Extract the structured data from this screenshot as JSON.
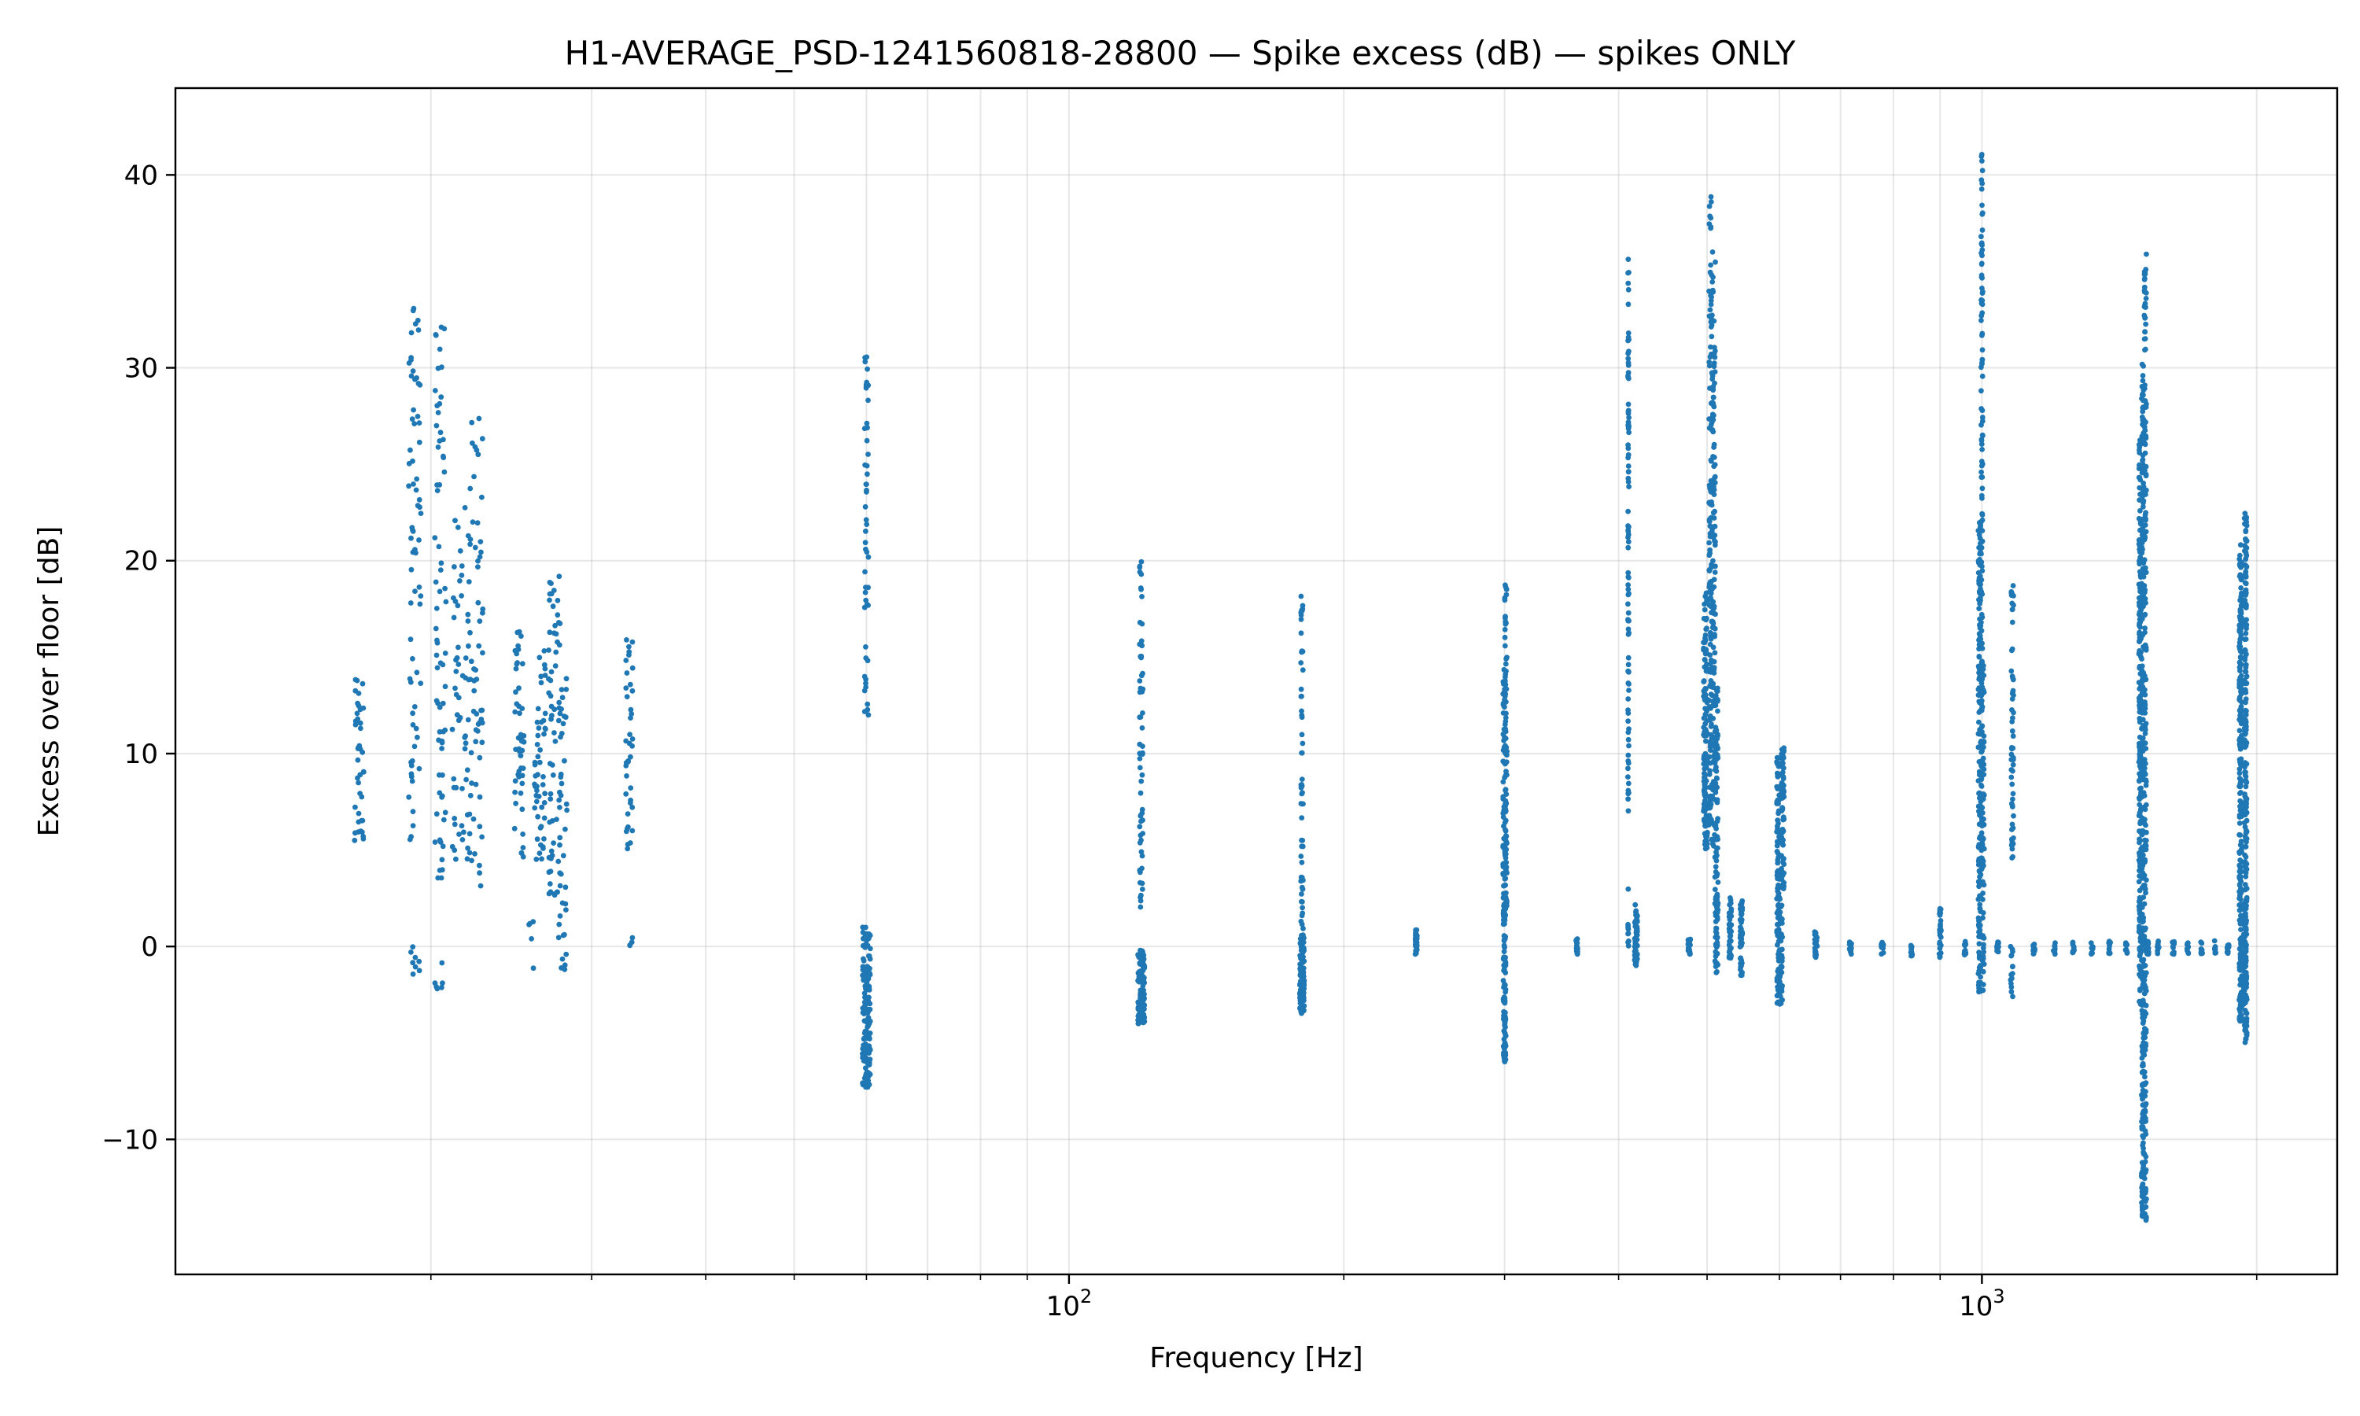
{
  "chart_data": {
    "type": "scatter",
    "title": "H1-AVERAGE_PSD-1241560818-28800 — Spike excess (dB) — spikes ONLY",
    "xlabel": "Frequency [Hz]",
    "ylabel": "Excess over floor [dB]",
    "xscale": "log",
    "xlim": [
      10.5,
      2450
    ],
    "ylim": [
      -17,
      44.5
    ],
    "x_major_ticks": [
      100,
      1000
    ],
    "x_tick_labels": [
      "10",
      "3"
    ],
    "x_tick_base": "10",
    "x_tick_exponents": [
      "2",
      "3"
    ],
    "y_ticks": [
      -10,
      0,
      10,
      20,
      30,
      40
    ],
    "y_tick_labels": [
      "−10",
      "0",
      "10",
      "20",
      "30",
      "40"
    ],
    "grid": true,
    "legend": "none",
    "marker_color": "#1f77b4",
    "clusters": [
      {
        "f": 16.7,
        "spread": 0.2,
        "ymin": 5,
        "ymax": 14,
        "n": 40
      },
      {
        "f": 19.2,
        "spread": 0.3,
        "ymin": 5.5,
        "ymax": 33.5,
        "n": 70
      },
      {
        "f": 19.3,
        "spread": 0.3,
        "ymin": -1.5,
        "ymax": 0.5,
        "n": 8
      },
      {
        "f": 20.5,
        "spread": 0.3,
        "ymin": 3.5,
        "ymax": 32.5,
        "n": 70
      },
      {
        "f": 20.4,
        "spread": 0.2,
        "ymin": -2.2,
        "ymax": -0.2,
        "n": 6
      },
      {
        "f": 21.6,
        "spread": 0.5,
        "ymin": 4.5,
        "ymax": 23,
        "n": 60
      },
      {
        "f": 22.4,
        "spread": 0.4,
        "ymin": 2.5,
        "ymax": 27.5,
        "n": 60
      },
      {
        "f": 25.0,
        "spread": 0.3,
        "ymin": 4.5,
        "ymax": 16.5,
        "n": 50
      },
      {
        "f": 25.7,
        "spread": 0.2,
        "ymin": -1.8,
        "ymax": 2.5,
        "n": 5
      },
      {
        "f": 26.3,
        "spread": 0.4,
        "ymin": 4.5,
        "ymax": 16.3,
        "n": 50
      },
      {
        "f": 27.3,
        "spread": 0.4,
        "ymin": 2.5,
        "ymax": 19.2,
        "n": 60
      },
      {
        "f": 27.9,
        "spread": 0.3,
        "ymin": -1.5,
        "ymax": 14,
        "n": 40
      },
      {
        "f": 33.0,
        "spread": 0.3,
        "ymin": 5,
        "ymax": 16.8,
        "n": 40
      },
      {
        "f": 33.1,
        "spread": 0.2,
        "ymin": -0.2,
        "ymax": 0.5,
        "n": 4
      },
      {
        "f": 60.0,
        "spread": 0.3,
        "ymin": 12,
        "ymax": 30.6,
        "n": 50
      },
      {
        "f": 60.0,
        "spread": 0.6,
        "ymin": -7.3,
        "ymax": 1,
        "n": 140
      },
      {
        "f": 120.0,
        "spread": 0.5,
        "ymin": 2,
        "ymax": 20,
        "n": 60
      },
      {
        "f": 120.0,
        "spread": 1.0,
        "ymin": -4,
        "ymax": -0.2,
        "n": 140
      },
      {
        "f": 180.0,
        "spread": 0.5,
        "ymin": 0,
        "ymax": 18.2,
        "n": 60
      },
      {
        "f": 180.0,
        "spread": 1.0,
        "ymin": -3.5,
        "ymax": 0.5,
        "n": 110
      },
      {
        "f": 240.0,
        "spread": 0.6,
        "ymin": -0.4,
        "ymax": 0.9,
        "n": 30
      },
      {
        "f": 300.0,
        "spread": 1.2,
        "ymin": 2,
        "ymax": 14.5,
        "n": 90
      },
      {
        "f": 301.0,
        "spread": 0.8,
        "ymin": 2,
        "ymax": 19.3,
        "n": 60
      },
      {
        "f": 300.0,
        "spread": 1.0,
        "ymin": -6,
        "ymax": 2,
        "n": 100
      },
      {
        "f": 360.0,
        "spread": 0.7,
        "ymin": -0.4,
        "ymax": 0.4,
        "n": 20
      },
      {
        "f": 410.0,
        "spread": 0.5,
        "ymin": 6.5,
        "ymax": 36,
        "n": 90
      },
      {
        "f": 410.0,
        "spread": 0.5,
        "ymin": 15,
        "ymax": 18.5,
        "n": 3
      },
      {
        "f": 410.0,
        "spread": 0.5,
        "ymin": 0,
        "ymax": 3.2,
        "n": 10
      },
      {
        "f": 418.0,
        "spread": 1.5,
        "ymin": -1,
        "ymax": 2.2,
        "n": 60
      },
      {
        "f": 478.0,
        "spread": 1.5,
        "ymin": -0.4,
        "ymax": 0.4,
        "n": 20
      },
      {
        "f": 498.0,
        "spread": 2.5,
        "ymin": 5,
        "ymax": 18.5,
        "n": 140
      },
      {
        "f": 504.0,
        "spread": 1.5,
        "ymin": 6,
        "ymax": 39.2,
        "n": 120
      },
      {
        "f": 508.0,
        "spread": 2.5,
        "ymin": 5,
        "ymax": 36,
        "n": 140
      },
      {
        "f": 512.0,
        "spread": 2.0,
        "ymin": -1.5,
        "ymax": 13.5,
        "n": 100
      },
      {
        "f": 512.0,
        "spread": 1.5,
        "ymin": -0.5,
        "ymax": 3,
        "n": 20
      },
      {
        "f": 530.0,
        "spread": 1.5,
        "ymin": -0.6,
        "ymax": 2.6,
        "n": 40
      },
      {
        "f": 545.0,
        "spread": 1.5,
        "ymin": -1.5,
        "ymax": 2.5,
        "n": 50
      },
      {
        "f": 598.0,
        "spread": 2.0,
        "ymin": -3,
        "ymax": 9.8,
        "n": 100
      },
      {
        "f": 605.0,
        "spread": 2.0,
        "ymin": 3,
        "ymax": 10.3,
        "n": 80
      },
      {
        "f": 602.0,
        "spread": 2.5,
        "ymin": -3,
        "ymax": 2.5,
        "n": 60
      },
      {
        "f": 658.0,
        "spread": 2.0,
        "ymin": -0.6,
        "ymax": 0.8,
        "n": 25
      },
      {
        "f": 718.0,
        "spread": 2.0,
        "ymin": -0.4,
        "ymax": 0.3,
        "n": 15
      },
      {
        "f": 778.0,
        "spread": 2.0,
        "ymin": -0.4,
        "ymax": 0.3,
        "n": 12
      },
      {
        "f": 838.0,
        "spread": 2.0,
        "ymin": -0.5,
        "ymax": 0.3,
        "n": 12
      },
      {
        "f": 900.0,
        "spread": 2.0,
        "ymin": -0.6,
        "ymax": 2,
        "n": 25
      },
      {
        "f": 958.0,
        "spread": 2.0,
        "ymin": -0.5,
        "ymax": 0.3,
        "n": 12
      },
      {
        "f": 994.0,
        "spread": 3.0,
        "ymin": -2.5,
        "ymax": 22,
        "n": 160
      },
      {
        "f": 1000.0,
        "spread": 2.0,
        "ymin": 4,
        "ymax": 41.7,
        "n": 140
      },
      {
        "f": 1003.0,
        "spread": 3.0,
        "ymin": -2.5,
        "ymax": 15,
        "n": 60
      },
      {
        "f": 1080.0,
        "spread": 3.0,
        "ymin": 4.5,
        "ymax": 19.8,
        "n": 60
      },
      {
        "f": 1078.0,
        "spread": 3.0,
        "ymin": -2.6,
        "ymax": 0.3,
        "n": 15
      },
      {
        "f": 1040.0,
        "spread": 3.0,
        "ymin": -0.4,
        "ymax": 0.3,
        "n": 10
      },
      {
        "f": 1140.0,
        "spread": 3.0,
        "ymin": -0.4,
        "ymax": 0.3,
        "n": 10
      },
      {
        "f": 1200.0,
        "spread": 3.0,
        "ymin": -0.4,
        "ymax": 0.3,
        "n": 10
      },
      {
        "f": 1260.0,
        "spread": 3.0,
        "ymin": -0.4,
        "ymax": 0.3,
        "n": 10
      },
      {
        "f": 1320.0,
        "spread": 3.0,
        "ymin": -0.4,
        "ymax": 0.3,
        "n": 10
      },
      {
        "f": 1380.0,
        "spread": 3.0,
        "ymin": -0.4,
        "ymax": 0.3,
        "n": 10
      },
      {
        "f": 1440.0,
        "spread": 3.0,
        "ymin": -0.4,
        "ymax": 0.3,
        "n": 10
      },
      {
        "f": 1490.0,
        "spread": 4.0,
        "ymin": -3,
        "ymax": 26.5,
        "n": 200
      },
      {
        "f": 1500.0,
        "spread": 4.0,
        "ymin": -14,
        "ymax": 30.5,
        "n": 250
      },
      {
        "f": 1510.0,
        "spread": 4.0,
        "ymin": -14.2,
        "ymax": 36.5,
        "n": 200
      },
      {
        "f": 1520.0,
        "spread": 3.0,
        "ymin": -0.4,
        "ymax": 0.3,
        "n": 20
      },
      {
        "f": 1560.0,
        "spread": 4.0,
        "ymin": -0.4,
        "ymax": 0.3,
        "n": 10
      },
      {
        "f": 1620.0,
        "spread": 4.0,
        "ymin": -0.4,
        "ymax": 0.3,
        "n": 10
      },
      {
        "f": 1680.0,
        "spread": 4.0,
        "ymin": -0.4,
        "ymax": 0.3,
        "n": 10
      },
      {
        "f": 1740.0,
        "spread": 4.0,
        "ymin": -0.4,
        "ymax": 0.3,
        "n": 10
      },
      {
        "f": 1800.0,
        "spread": 4.0,
        "ymin": -0.4,
        "ymax": 0.3,
        "n": 10
      },
      {
        "f": 1860.0,
        "spread": 4.0,
        "ymin": -0.4,
        "ymax": 0.3,
        "n": 10
      },
      {
        "f": 1920.0,
        "spread": 6.0,
        "ymin": -4,
        "ymax": 21,
        "n": 250
      },
      {
        "f": 1945.0,
        "spread": 6.0,
        "ymin": -5,
        "ymax": 22.5,
        "n": 250
      },
      {
        "f": 1935.0,
        "spread": 5.0,
        "ymin": -3,
        "ymax": 2,
        "n": 40
      }
    ]
  }
}
